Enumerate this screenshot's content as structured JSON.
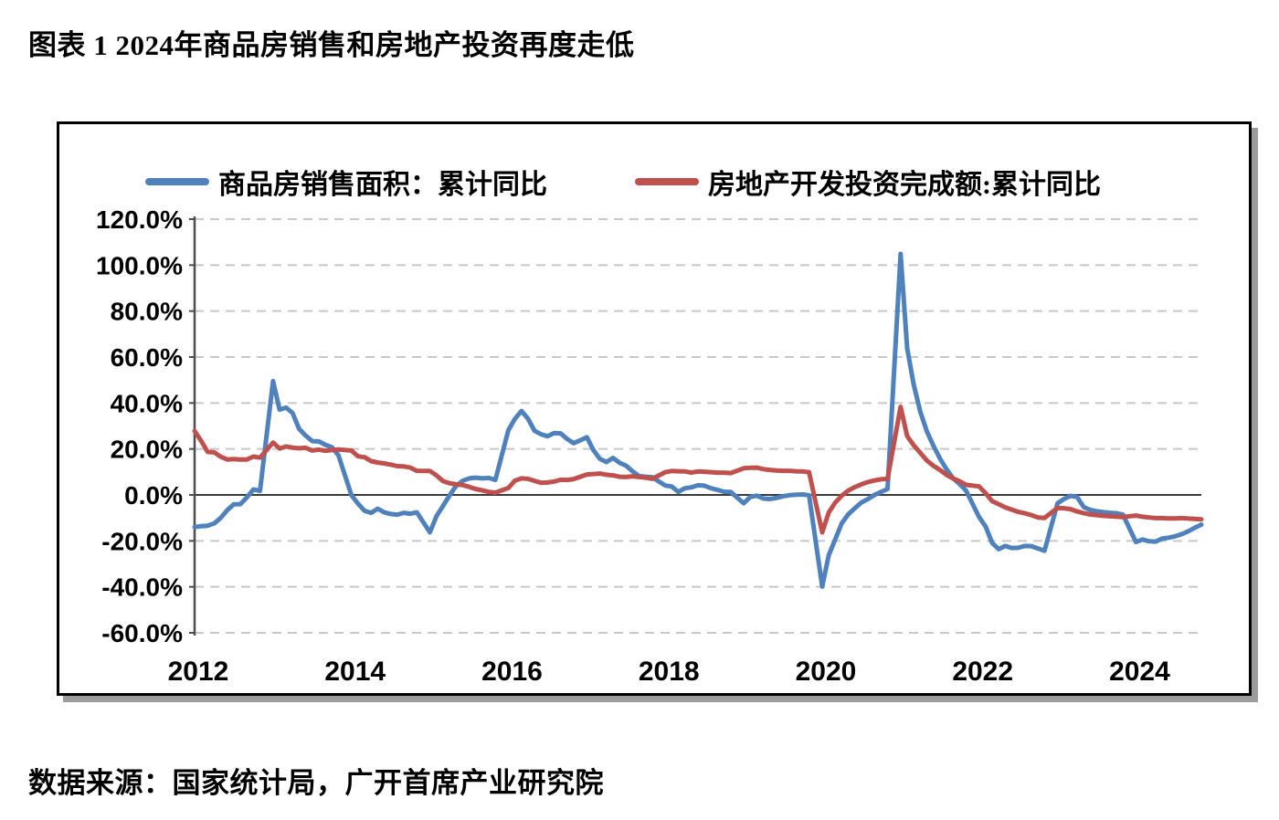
{
  "title": "图表 1 2024年商品房销售和房地产投资再度走低",
  "source_note": "数据来源：国家统计局，广开首席产业研究院",
  "colors": {
    "sales_line": "#4F81BD",
    "investment_line": "#C0504D",
    "gridline": "#C8C8C8",
    "zero_line": "#3B3B3B",
    "axis_line": "#4D4D4D",
    "frame_border": "#000000",
    "frame_shadow": "#9C9C9C",
    "text": "#000000"
  },
  "chart_data": {
    "type": "line",
    "grid": "horizontal-dashed",
    "legend_position": "top-inside",
    "ylim": [
      -60,
      120
    ],
    "ytick_step": 20,
    "y_tick_labels": [
      "120.0%",
      "100.0%",
      "80.0%",
      "60.0%",
      "40.0%",
      "20.0%",
      "0.0%",
      "-20.0%",
      "-40.0%",
      "-60.0%"
    ],
    "x_tick_labels": [
      "2012",
      "2014",
      "2016",
      "2018",
      "2020",
      "2022",
      "2024"
    ],
    "x_note": "monthly cumulative year-to-date YoY, February–December each year (no January reading), 2012–2024",
    "years": [
      "2012",
      "2013",
      "2014",
      "2015",
      "2016",
      "2017",
      "2018",
      "2019",
      "2020",
      "2021",
      "2022",
      "2023",
      "2024"
    ],
    "first_month": 2,
    "unit": "%",
    "series": [
      {
        "name": "商品房销售面积：累计同比",
        "color": "#4F81BD",
        "values_by_year": {
          "2012": [
            -14.0,
            -13.6,
            -13.4,
            -12.4,
            -10.0,
            -6.6,
            -4.1,
            -4.0,
            -1.1,
            2.4,
            1.8
          ],
          "2013": [
            49.5,
            37.1,
            38.0,
            35.6,
            28.7,
            25.8,
            23.4,
            23.3,
            21.8,
            20.8,
            17.3
          ],
          "2014": [
            -0.1,
            -3.8,
            -6.9,
            -7.8,
            -6.0,
            -7.6,
            -8.3,
            -8.6,
            -7.8,
            -8.2,
            -7.6
          ],
          "2015": [
            -16.3,
            -9.2,
            -4.8,
            -0.2,
            3.9,
            6.1,
            7.2,
            7.5,
            7.2,
            7.4,
            6.5
          ],
          "2016": [
            28.2,
            33.1,
            36.5,
            33.2,
            27.9,
            26.4,
            25.5,
            26.9,
            26.8,
            24.3,
            22.5
          ],
          "2017": [
            25.1,
            19.5,
            15.7,
            14.3,
            16.1,
            14.0,
            12.7,
            10.3,
            8.2,
            7.9,
            7.7
          ],
          "2018": [
            4.1,
            3.6,
            1.3,
            2.9,
            3.3,
            4.2,
            4.0,
            2.9,
            2.2,
            1.4,
            1.3
          ],
          "2019": [
            -3.6,
            -0.9,
            -0.3,
            -1.6,
            -1.8,
            -1.3,
            -0.6,
            -0.1,
            0.1,
            0.2,
            -0.1
          ],
          "2020": [
            -39.9,
            -26.3,
            -19.3,
            -12.3,
            -8.4,
            -5.8,
            -3.3,
            -1.8,
            0.0,
            1.3,
            2.6
          ],
          "2021": [
            104.9,
            63.8,
            48.1,
            36.3,
            27.7,
            21.5,
            15.9,
            11.3,
            7.3,
            4.8,
            1.9
          ],
          "2022": [
            -9.6,
            -13.8,
            -20.9,
            -23.6,
            -22.2,
            -23.1,
            -23.0,
            -22.2,
            -22.3,
            -23.3,
            -24.3
          ],
          "2023": [
            -3.6,
            -1.8,
            -0.4,
            -0.9,
            -5.3,
            -6.5,
            -7.1,
            -7.5,
            -7.8,
            -8.0,
            -8.5
          ],
          "2024": [
            -20.5,
            -19.4,
            -20.2,
            -20.3,
            -19.0,
            -18.6,
            -18.0,
            -17.1,
            -15.8,
            -14.3,
            -12.9
          ]
        }
      },
      {
        "name": "房地产开发投资完成额:累计同比",
        "color": "#C0504D",
        "values_by_year": {
          "2012": [
            27.8,
            23.5,
            18.7,
            18.5,
            16.6,
            15.4,
            15.6,
            15.4,
            15.4,
            16.7,
            16.2
          ],
          "2013": [
            22.8,
            20.2,
            21.1,
            20.6,
            20.3,
            20.5,
            19.3,
            19.7,
            19.2,
            19.5,
            19.8
          ],
          "2014": [
            19.3,
            16.8,
            16.4,
            14.7,
            14.1,
            13.7,
            13.2,
            12.5,
            12.4,
            11.9,
            10.5
          ],
          "2015": [
            10.4,
            8.5,
            6.0,
            5.1,
            4.6,
            4.3,
            3.5,
            2.6,
            2.0,
            1.3,
            1.0
          ],
          "2016": [
            3.0,
            6.2,
            7.2,
            7.0,
            6.1,
            5.3,
            5.4,
            5.8,
            6.6,
            6.5,
            6.9
          ],
          "2017": [
            8.9,
            9.1,
            9.3,
            8.8,
            8.5,
            7.9,
            7.8,
            8.1,
            7.8,
            7.5,
            7.0
          ],
          "2018": [
            9.9,
            10.4,
            10.3,
            10.2,
            9.7,
            10.2,
            10.1,
            9.9,
            9.7,
            9.7,
            9.5
          ],
          "2019": [
            11.6,
            11.8,
            11.9,
            11.2,
            10.9,
            10.6,
            10.5,
            10.5,
            10.3,
            10.2,
            9.9
          ],
          "2020": [
            -16.3,
            -7.7,
            -3.3,
            -0.3,
            1.9,
            3.4,
            4.6,
            5.6,
            6.3,
            6.8,
            7.0
          ],
          "2021": [
            38.3,
            25.6,
            21.6,
            18.3,
            15.0,
            12.7,
            10.9,
            8.8,
            7.2,
            6.0,
            4.4
          ],
          "2022": [
            3.7,
            0.7,
            -2.7,
            -4.0,
            -5.4,
            -6.4,
            -7.4,
            -8.0,
            -8.8,
            -9.8,
            -10.0
          ],
          "2023": [
            -5.7,
            -5.8,
            -6.2,
            -7.2,
            -7.9,
            -8.5,
            -8.8,
            -9.1,
            -9.3,
            -9.4,
            -9.6
          ],
          "2024": [
            -9.0,
            -9.5,
            -9.8,
            -10.1,
            -10.1,
            -10.2,
            -10.2,
            -10.1,
            -10.3,
            -10.4,
            -10.6
          ]
        }
      }
    ]
  }
}
